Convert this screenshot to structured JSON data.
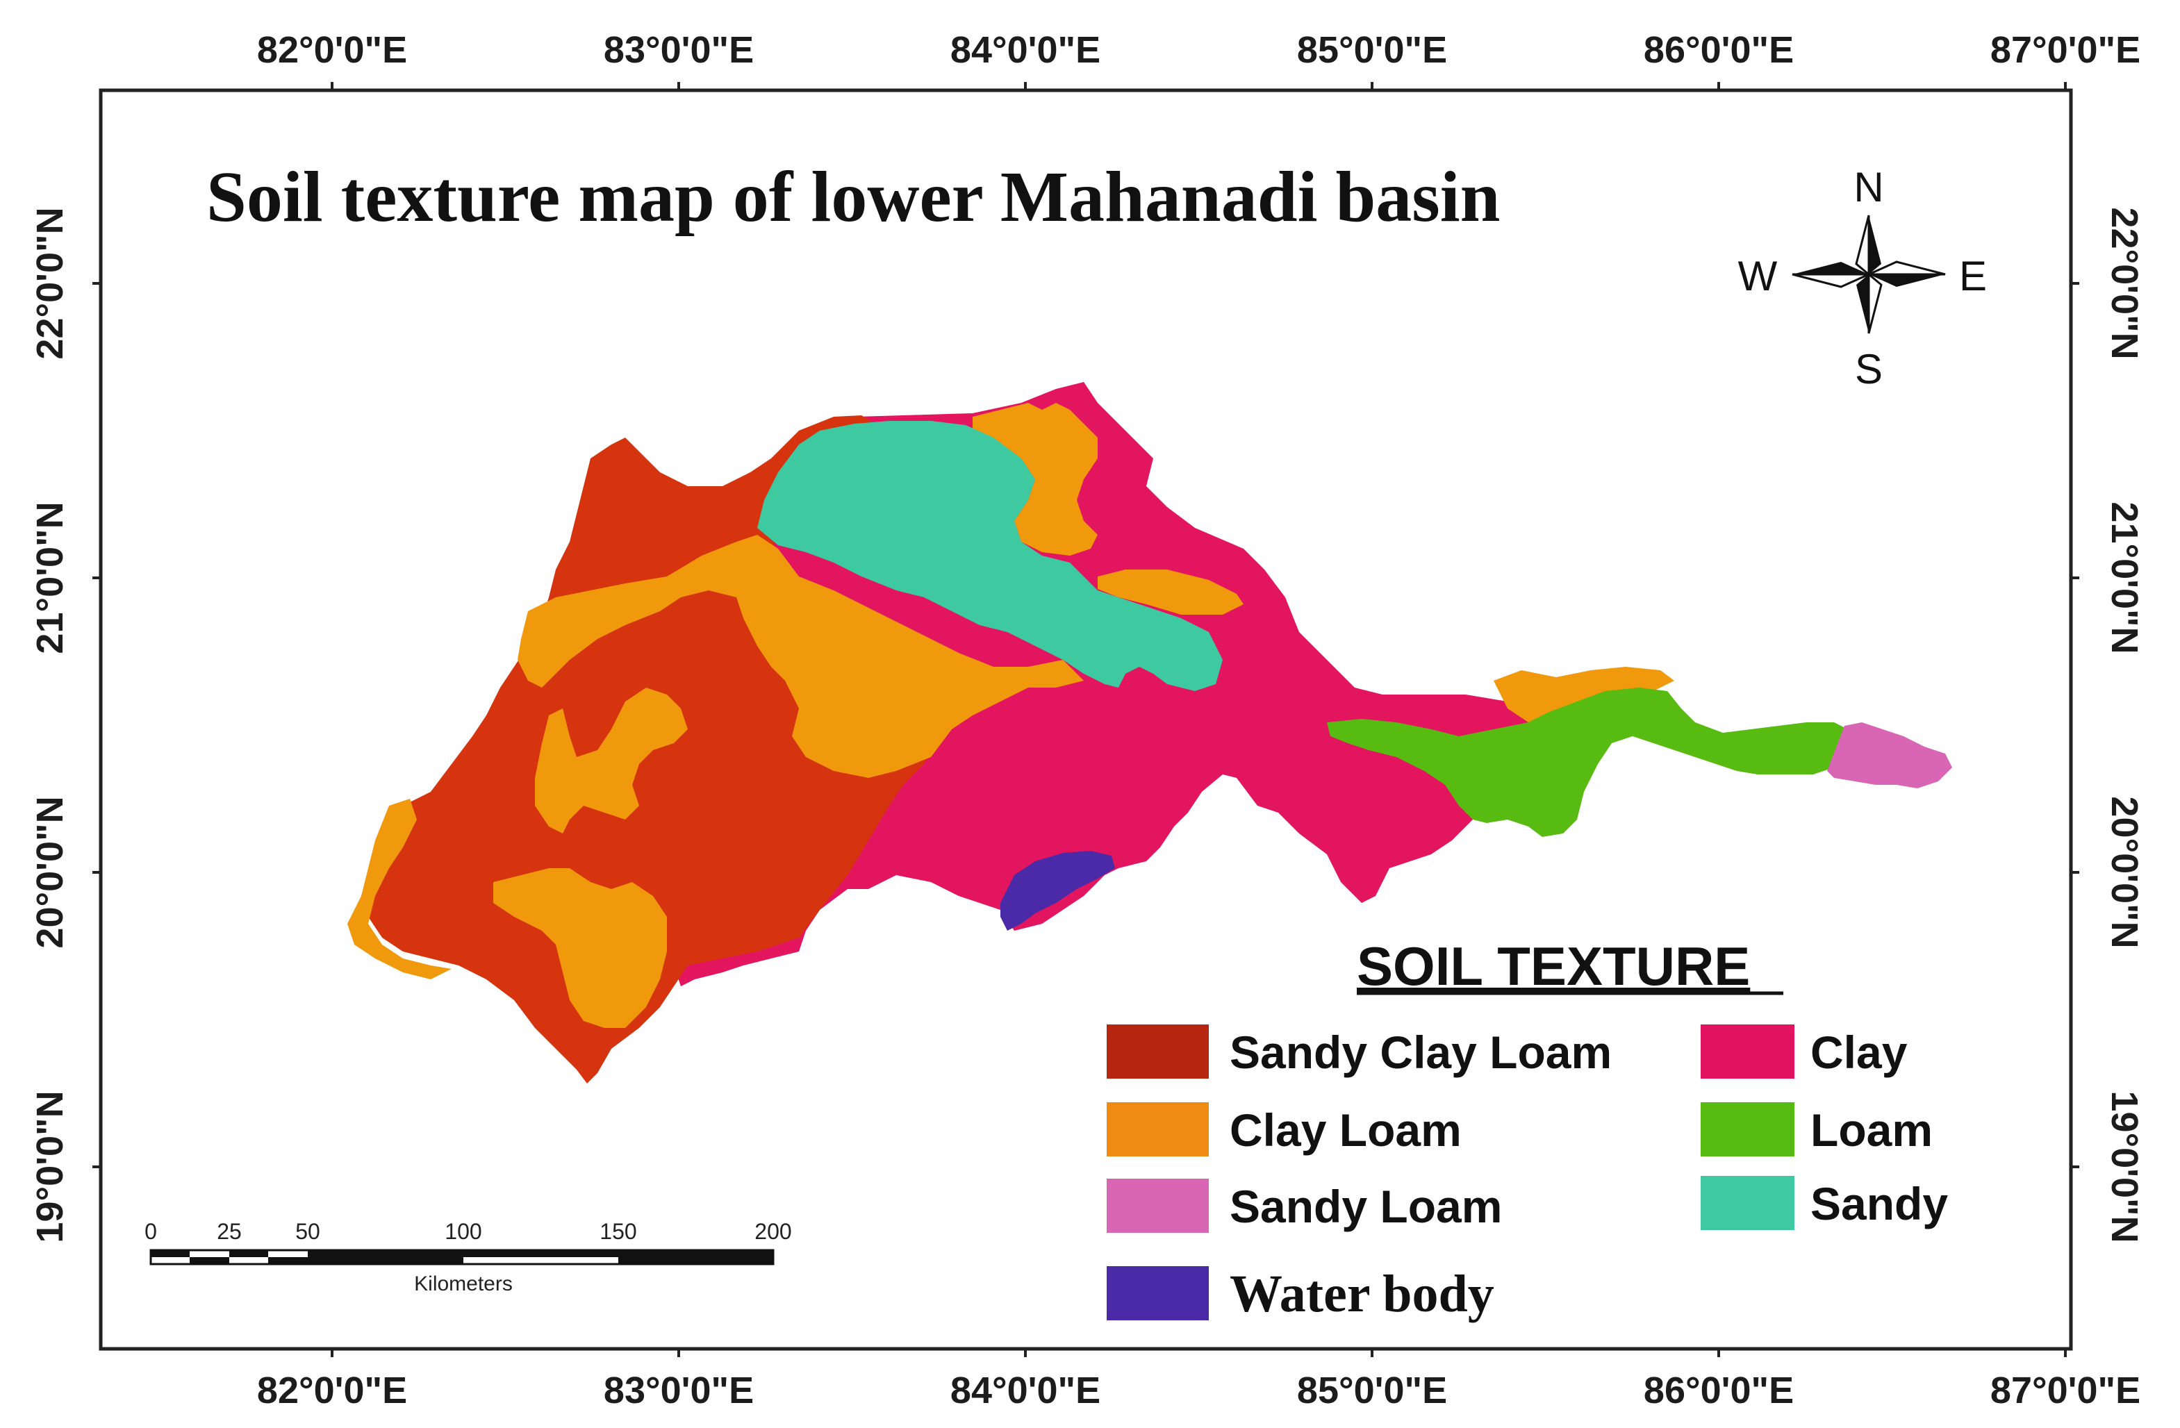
{
  "title": "Soil texture map of lower Mahanadi basin",
  "longitude_labels": [
    "82°0'0\"E",
    "83°0'0\"E",
    "84°0'0\"E",
    "85°0'0\"E",
    "86°0'0\"E",
    "87°0'0\"E"
  ],
  "latitude_labels": [
    "22°0'0\"N",
    "21°0'0\"N",
    "20°0'0\"N",
    "19°0'0\"N"
  ],
  "compass": {
    "north": "N",
    "south": "S",
    "east": "E",
    "west": "W"
  },
  "legend": {
    "title": "SOIL TEXTURE",
    "items": [
      {
        "label": "Sandy Clay Loam",
        "color": "#b5250f"
      },
      {
        "label": "Clay Loam",
        "color": "#ef8a12"
      },
      {
        "label": "Sandy Loam",
        "color": "#d866b4"
      },
      {
        "label": "Water body",
        "color": "#4a2aa6"
      },
      {
        "label": "Clay",
        "color": "#e2135e"
      },
      {
        "label": "Loam",
        "color": "#58bb12"
      },
      {
        "label": "Sandy",
        "color": "#3ec9a0"
      }
    ]
  },
  "scale_bar": {
    "ticks": [
      "0",
      "25",
      "50",
      "100",
      "150",
      "200"
    ],
    "unit": "Kilometers"
  },
  "region_colors": {
    "sandy_clay_loam": "#d6330f",
    "clay_loam": "#f0990d",
    "clay": "#e3155f",
    "sandy": "#3ec9a0",
    "loam": "#58bb12",
    "sandy_loam": "#d866b4",
    "water_body": "#4a2aa6"
  }
}
